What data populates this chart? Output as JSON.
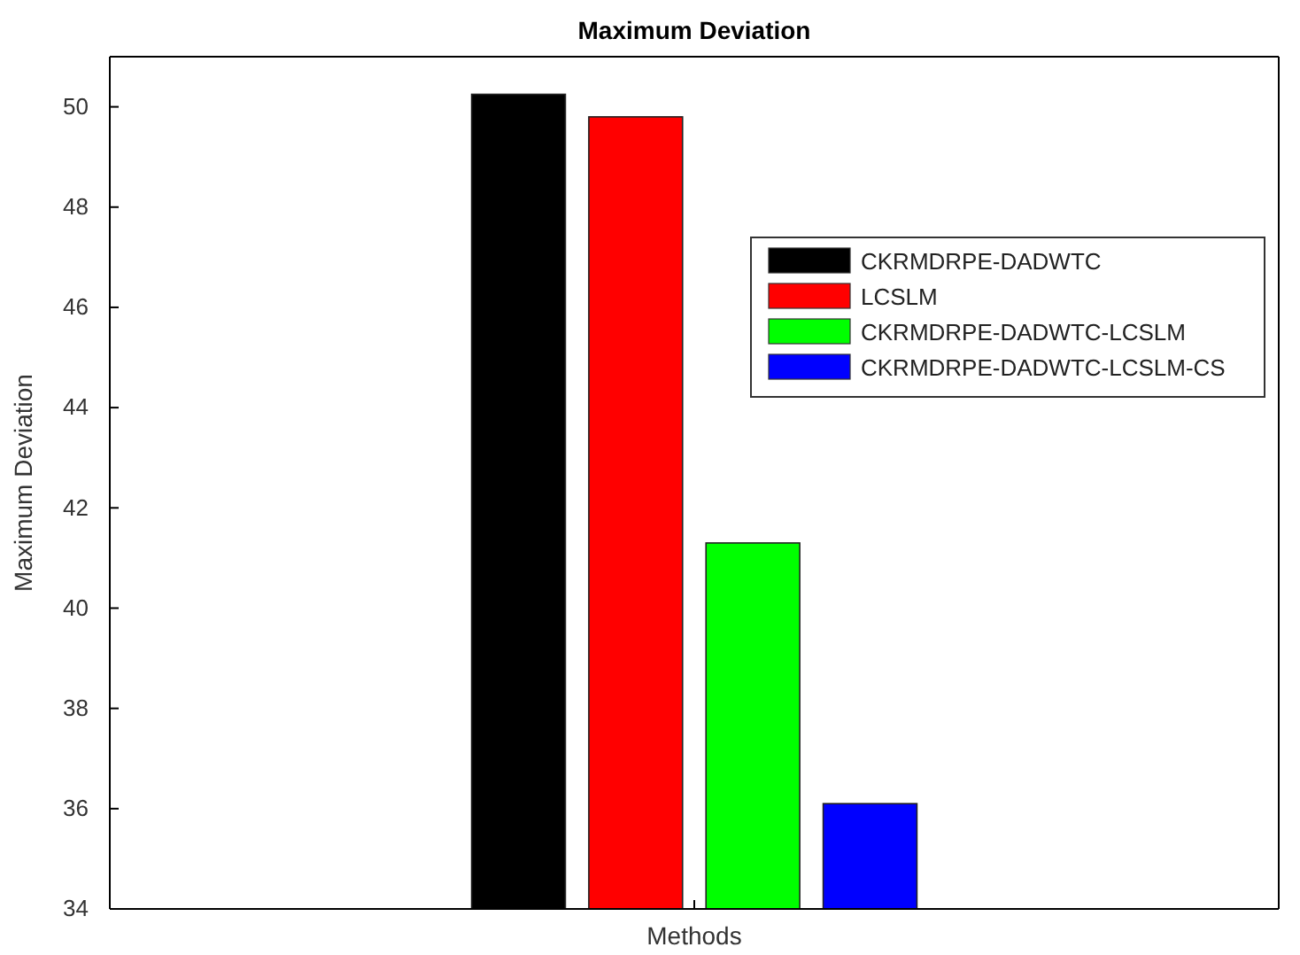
{
  "chart_data": {
    "type": "bar",
    "title": "Maximum Deviation",
    "xlabel": "Methods",
    "ylabel": "Maximum Deviation",
    "categories": [
      null
    ],
    "series": [
      {
        "name": "CKRMDRPE-DADWTC",
        "color": "#000000",
        "values": [
          50.25
        ]
      },
      {
        "name": "LCSLM",
        "color": "#ff0000",
        "values": [
          49.8
        ]
      },
      {
        "name": "CKRMDRPE-DADWTC-LCSLM",
        "color": "#00ff00",
        "values": [
          41.3
        ]
      },
      {
        "name": "CKRMDRPE-DADWTC-LCSLM-CS",
        "color": "#0000ff",
        "values": [
          36.1
        ]
      }
    ],
    "ylim": [
      34,
      51
    ],
    "yticks": [
      34,
      36,
      38,
      40,
      42,
      44,
      46,
      48,
      50
    ],
    "legend": "top right"
  }
}
